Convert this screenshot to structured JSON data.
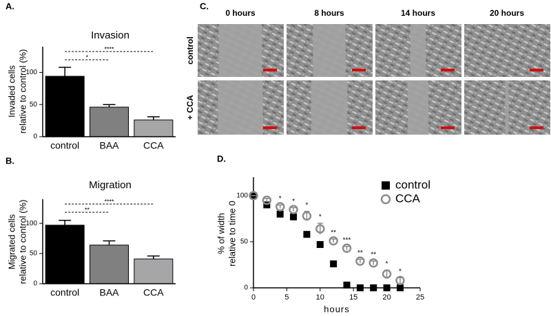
{
  "chart_data": [
    {
      "type": "bar",
      "panel": "A.",
      "title": "Invasion",
      "ylabel": [
        "Invaded cells",
        "relative to control (%)"
      ],
      "categories": [
        "control",
        "BAA",
        "CCA"
      ],
      "values": [
        94,
        46,
        26
      ],
      "errors": [
        14,
        4,
        5
      ],
      "colors": [
        "#000000",
        "#808080",
        "#a6a6a8"
      ],
      "ylim": [
        0,
        140
      ],
      "yticks": [
        0,
        50,
        100
      ],
      "significance": [
        {
          "text": "****",
          "between": [
            "control",
            "CCA"
          ]
        },
        {
          "text": "*",
          "between": [
            "control",
            "BAA"
          ]
        }
      ]
    },
    {
      "type": "bar",
      "panel": "B.",
      "title": "Migration",
      "ylabel": [
        "Migrated cells",
        "relative to control (%)"
      ],
      "categories": [
        "control",
        "BAA",
        "CCA"
      ],
      "values": [
        97,
        64,
        41
      ],
      "errors": [
        8,
        7,
        5
      ],
      "colors": [
        "#000000",
        "#808080",
        "#a6a6a8"
      ],
      "ylim": [
        0,
        140
      ],
      "yticks": [
        0,
        50,
        100
      ],
      "significance": [
        {
          "text": "****",
          "between": [
            "control",
            "CCA"
          ]
        },
        {
          "text": "**",
          "between": [
            "control",
            "BAA"
          ]
        }
      ]
    },
    {
      "type": "scatter",
      "panel": "D.",
      "xlabel": "hours",
      "ylabel": [
        "% of width",
        "relative to time 0"
      ],
      "x": [
        0,
        2,
        4,
        6,
        8,
        10,
        12,
        14,
        16,
        18,
        20,
        22
      ],
      "series": [
        {
          "name": "control",
          "color": "#000000",
          "marker": "square",
          "values": [
            100,
            90,
            80,
            77,
            58,
            47,
            26,
            3,
            0,
            0,
            0,
            0
          ]
        },
        {
          "name": "CCA",
          "color": "#8c8c8c",
          "marker": "open-circle",
          "values": [
            100,
            95,
            88,
            85,
            78,
            64,
            51,
            43,
            29,
            27,
            15,
            8
          ],
          "errors": [
            0,
            2,
            2,
            2,
            5,
            6,
            2,
            2,
            2,
            2,
            4,
            3
          ]
        }
      ],
      "significance": [
        null,
        null,
        "*",
        "*",
        "*",
        "*",
        "**",
        "***",
        "**",
        "**",
        "*",
        "*"
      ],
      "xlim": [
        0,
        25
      ],
      "xticks": [
        0,
        5,
        10,
        15,
        20,
        25
      ],
      "ylim": [
        0,
        120
      ],
      "yticks": [
        0,
        50,
        100
      ],
      "legend": "upper right"
    }
  ],
  "image_grid": {
    "panel": "C.",
    "columns": [
      "0 hours",
      "8 hours",
      "14 hours",
      "20 hours"
    ],
    "rows": [
      "control",
      "+ CCA"
    ]
  }
}
